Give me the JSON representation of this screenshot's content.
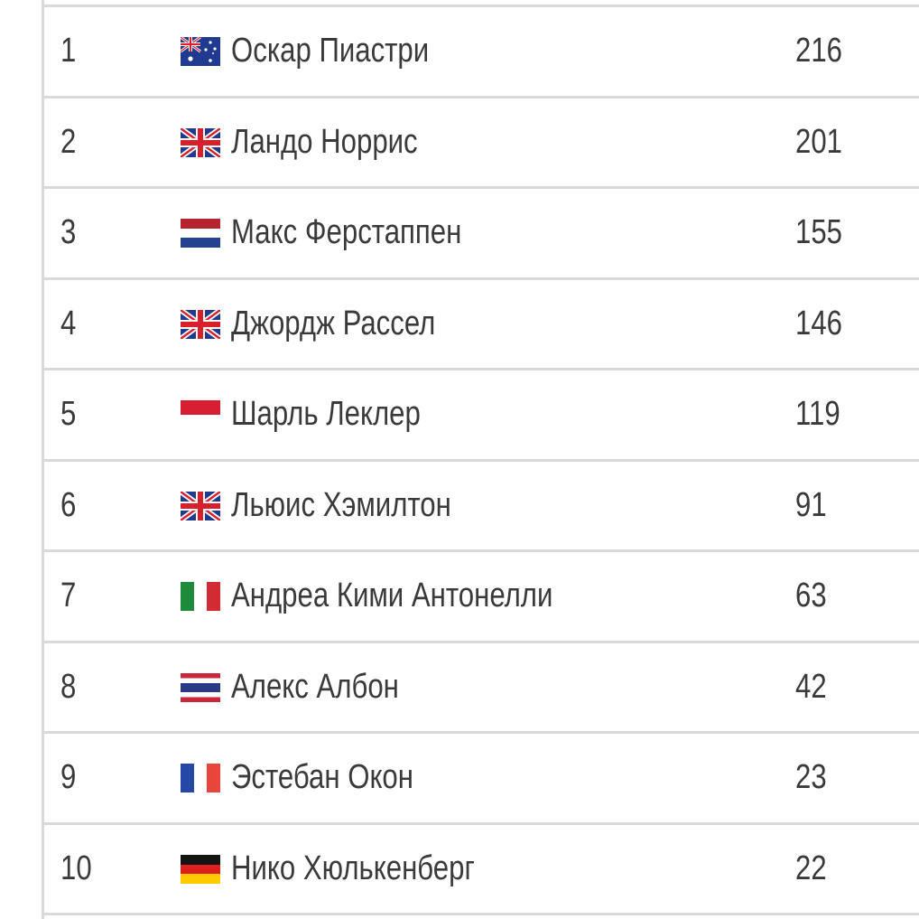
{
  "standings": [
    {
      "position": "1",
      "flag_icon": "australia-flag-icon",
      "driver": "Оскар Пиастри",
      "points": "216"
    },
    {
      "position": "2",
      "flag_icon": "uk-flag-icon",
      "driver": "Ландо Норрис",
      "points": "201"
    },
    {
      "position": "3",
      "flag_icon": "netherlands-flag-icon",
      "driver": "Макс Ферстаппен",
      "points": "155"
    },
    {
      "position": "4",
      "flag_icon": "uk-flag-icon",
      "driver": "Джордж Рассел",
      "points": "146"
    },
    {
      "position": "5",
      "flag_icon": "monaco-flag-icon",
      "driver": "Шарль Леклер",
      "points": "119"
    },
    {
      "position": "6",
      "flag_icon": "uk-flag-icon",
      "driver": "Льюис Хэмилтон",
      "points": "91"
    },
    {
      "position": "7",
      "flag_icon": "italy-flag-icon",
      "driver": "Андреа Кими Антонелли",
      "points": "63"
    },
    {
      "position": "8",
      "flag_icon": "thailand-flag-icon",
      "driver": "Алекс Албон",
      "points": "42"
    },
    {
      "position": "9",
      "flag_icon": "france-flag-icon",
      "driver": "Эстебан Окон",
      "points": "23"
    },
    {
      "position": "10",
      "flag_icon": "germany-flag-icon",
      "driver": "Нико Хюлькенберг",
      "points": "22"
    }
  ],
  "colors": {
    "text": "#3a3a3a",
    "border": "#d9d9d9"
  }
}
